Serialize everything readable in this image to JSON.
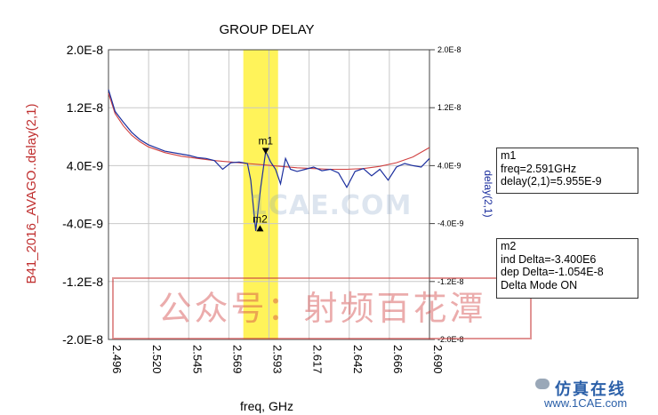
{
  "chart_data": {
    "type": "line",
    "title": "GROUP DELAY",
    "xlabel": "freq, GHz",
    "ylabel_left": "B41_2016_AVAGO..delay(2,1)",
    "ylabel_right": "delay(2,1)",
    "xlim": [
      2.496,
      2.69
    ],
    "ylim": [
      -2e-08,
      2e-08
    ],
    "x_ticks": [
      "2.496",
      "2.520",
      "2.545",
      "2.569",
      "2.593",
      "2.617",
      "2.642",
      "2.666",
      "2.690"
    ],
    "y_ticks_left": [
      "2.0E-8",
      "1.2E-8",
      "4.0E-9",
      "-4.0E-9",
      "-1.2E-8",
      "-2.0E-8"
    ],
    "y_ticks_right": [
      "2.0E-8",
      "1.2E-8",
      "4.0E-9",
      "-4.0E-9",
      "-1.2E-8",
      "-2.0E-8"
    ],
    "grid": true,
    "highlight_band": {
      "x_start": 2.5775,
      "x_end": 2.5985,
      "color": "#fff35a"
    },
    "series": [
      {
        "name": "B41_2016_AVAGO..delay(2,1)",
        "color": "#d04040",
        "x": [
          2.496,
          2.5,
          2.505,
          2.51,
          2.515,
          2.52,
          2.53,
          2.54,
          2.55,
          2.56,
          2.57,
          2.58,
          2.59,
          2.6,
          2.61,
          2.62,
          2.63,
          2.64,
          2.65,
          2.66,
          2.67,
          2.68,
          2.69
        ],
        "y": [
          1.4e-08,
          1.12e-08,
          9.5e-09,
          8.2e-09,
          7.3e-09,
          6.6e-09,
          5.8e-09,
          5.3e-09,
          5e-09,
          4.7e-09,
          4.5e-09,
          4.3e-09,
          4.1e-09,
          3.9e-09,
          3.7e-09,
          3.6e-09,
          3.5e-09,
          3.5e-09,
          3.6e-09,
          3.9e-09,
          4.4e-09,
          5.2e-09,
          6.5e-09
        ]
      },
      {
        "name": "delay(2,1)",
        "color": "#1c2f9e",
        "x": [
          2.496,
          2.5,
          2.505,
          2.51,
          2.515,
          2.52,
          2.53,
          2.54,
          2.545,
          2.55,
          2.555,
          2.56,
          2.565,
          2.57,
          2.575,
          2.58,
          2.582,
          2.585,
          2.588,
          2.591,
          2.594,
          2.597,
          2.6,
          2.603,
          2.606,
          2.61,
          2.615,
          2.62,
          2.625,
          2.63,
          2.635,
          2.64,
          2.645,
          2.65,
          2.655,
          2.66,
          2.665,
          2.67,
          2.675,
          2.68,
          2.685,
          2.69
        ],
        "y": [
          1.45e-08,
          1.15e-08,
          1e-08,
          8.6e-09,
          7.6e-09,
          6.9e-09,
          6e-09,
          5.6e-09,
          5.4e-09,
          5.1e-09,
          5e-09,
          4.7e-09,
          3.5e-09,
          4.4e-09,
          4.5e-09,
          4.3e-09,
          2e-09,
          -5e-09,
          1e-09,
          5.955e-09,
          4.5e-09,
          3.5e-09,
          1.5e-09,
          5e-09,
          3.5e-09,
          3.2e-09,
          3.5e-09,
          3.8e-09,
          3.3e-09,
          3.5e-09,
          3e-09,
          1e-09,
          3.2e-09,
          3.6e-09,
          2.6e-09,
          3.5e-09,
          2e-09,
          3.8e-09,
          4.3e-09,
          4e-09,
          3.8e-09,
          5e-09
        ]
      }
    ],
    "markers": [
      {
        "label": "m1",
        "x": 2.591,
        "y": 5.955e-09
      },
      {
        "label": "m2",
        "x": 2.5876,
        "y": -4.585e-09
      }
    ]
  },
  "marker_readouts": {
    "m1": {
      "title": "m1",
      "line1": "freq=2.591GHz",
      "line2": "delay(2,1)=5.955E-9"
    },
    "m2": {
      "title": "m2",
      "line1": "ind Delta=-3.400E6",
      "line2": "dep Delta=-1.054E-8",
      "line3": "Delta Mode ON"
    }
  },
  "watermarks": {
    "banner": "公众号：射频百花潭",
    "center": "1CAE.COM",
    "corner_brand": "仿真在线",
    "corner_url": "www.1CAE.com"
  },
  "colors": {
    "axis_text_left": "#c03030",
    "axis_text_right": "#1c2f9e",
    "grid": "#c8c8c8"
  }
}
